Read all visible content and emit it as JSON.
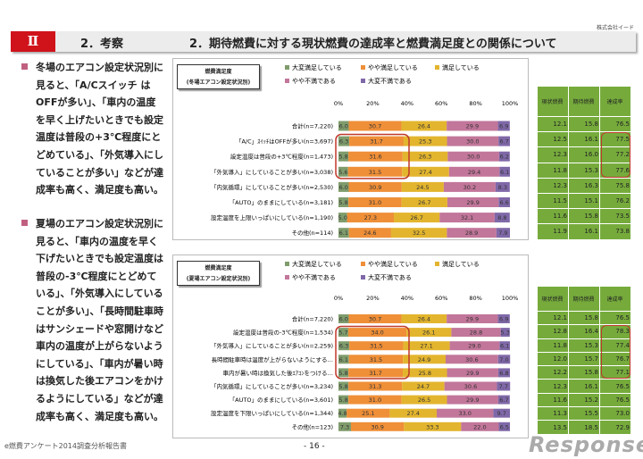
{
  "company": "株式会社イード",
  "header": {
    "section": "Ⅱ",
    "subtitle": "2．考察",
    "title": "2．期待燃費に対する現状燃費の達成率と燃費満足度との関係について"
  },
  "paragraphs": [
    "冬場のエアコン設定状況別に見ると、「A/Cスイッチ はOFFが多い」、「車内の温度を早く上げたいときでも設定温度は普段の+3℃程度にとどめている」、「外気導入にしていることが多い」などが達成率も高く、満足度も高い。",
    "夏場のエアコン設定状況別に見ると、「車内の温度を早く下げたいときでも設定温度は普段の-3℃程度にとどめている」、「外気導入にしていることが多い」、「長時間駐車時はサンシェードや窓開けなど車内の温度が上がらないようにしている」、「車内が暑い時は換気した後エアコンをかけるようにしている」などが達成率も高く、満足度も高い。"
  ],
  "footer": {
    "report": "e燃費アンケート2014調査分析報告書",
    "page": "- 16 -",
    "logo": "Response."
  },
  "colors": {
    "大変満足している": "#7f9c6c",
    "やや満足している": "#ef8f38",
    "満足している": "#e3b52e",
    "やや不満である": "#c2769a",
    "大変不満である": "#7f68a8",
    "table": "#76ab3c",
    "highlight": "#c0392b"
  },
  "chart_data": [
    {
      "type": "bar",
      "stacked": true,
      "orientation": "horizontal",
      "title_line1": "燃費満足度",
      "title_line2": "(冬場エアコン設定状況別)",
      "legend": [
        "大変満足している",
        "やや満足している",
        "満足している",
        "やや不満である",
        "大変不満である"
      ],
      "xticks": [
        "0%",
        "20%",
        "40%",
        "60%",
        "80%",
        "100%"
      ],
      "xlim": [
        0,
        100
      ],
      "categories": [
        "合計(n=7,220)",
        "「A/C」ｽｲｯﾁはOFFが多い(n=3,697)",
        "設定温度は普段の+3℃程度(n=1,473)",
        "「外気導入」にしていることが多い(n=3,038)",
        "「内気循環」にしていることが多い(n=2,530)",
        "「AUTO」のままにしている(n=3,181)",
        "設定温度を上限いっぱいにしている(n=1,190)",
        "その他(n=114)"
      ],
      "values": [
        [
          6.0,
          30.7,
          26.4,
          29.9,
          6.9
        ],
        [
          6.3,
          31.7,
          25.3,
          30.0,
          6.7
        ],
        [
          5.8,
          31.6,
          26.3,
          30.0,
          6.2
        ],
        [
          5.6,
          31.5,
          27.4,
          29.4,
          6.1
        ],
        [
          6.0,
          30.9,
          24.5,
          30.2,
          8.3
        ],
        [
          5.8,
          31.0,
          26.7,
          29.9,
          6.6
        ],
        [
          5.0,
          27.3,
          26.7,
          32.1,
          8.8
        ],
        [
          6.1,
          24.6,
          32.5,
          28.9,
          7.9
        ]
      ],
      "highlight_rows": [
        1,
        2,
        3
      ],
      "table": {
        "headers": [
          "現状燃費",
          "期待燃費",
          "達成率"
        ],
        "rows": [
          [
            12.1,
            15.8,
            76.5
          ],
          [
            12.5,
            16.1,
            77.5
          ],
          [
            12.3,
            16.0,
            77.2
          ],
          [
            11.8,
            15.3,
            77.6
          ],
          [
            12.3,
            16.3,
            75.8
          ],
          [
            11.5,
            15.1,
            76.2
          ],
          [
            11.6,
            15.8,
            73.5
          ],
          [
            11.9,
            16.1,
            73.8
          ]
        ]
      }
    },
    {
      "type": "bar",
      "stacked": true,
      "orientation": "horizontal",
      "title_line1": "燃費満足度",
      "title_line2": "(夏場エアコン設定状況別)",
      "legend": [
        "大変満足している",
        "やや満足している",
        "満足している",
        "やや不満である",
        "大変不満である"
      ],
      "xticks": [
        "0%",
        "20%",
        "40%",
        "60%",
        "80%",
        "100%"
      ],
      "xlim": [
        0,
        100
      ],
      "categories": [
        "合計(n=7,220)",
        "設定温度は普段の-3℃程度(n=1,534)",
        "「外気導入」にしていることが多い(n=2,259)",
        "長時間駐車時は温度が上がらないようにする…",
        "車内が暑い時は換気した後ｴｱｺﾝをつける…",
        "「内気循環」にしていることが多い(n=3,234)",
        "「AUTO」のままにしている(n=3,601)",
        "設定温度を下限いっぱいにしている(n=1,344)",
        "その他(n=123)"
      ],
      "values": [
        [
          6.0,
          30.7,
          26.4,
          29.9,
          6.9
        ],
        [
          5.7,
          34.0,
          26.1,
          28.8,
          5.3
        ],
        [
          6.3,
          31.5,
          27.1,
          29.0,
          6.1
        ],
        [
          6.1,
          31.5,
          24.9,
          30.6,
          7.0
        ],
        [
          5.8,
          31.7,
          25.8,
          29.9,
          6.8
        ],
        [
          5.8,
          31.3,
          24.7,
          30.6,
          7.7
        ],
        [
          5.8,
          31.0,
          26.5,
          29.9,
          6.7
        ],
        [
          4.8,
          25.1,
          27.4,
          33.0,
          9.7
        ],
        [
          7.3,
          30.9,
          33.3,
          22.0,
          6.5
        ]
      ],
      "highlight_rows": [
        1,
        2,
        3,
        4
      ],
      "table": {
        "headers": [
          "現状燃費",
          "期待燃費",
          "達成率"
        ],
        "rows": [
          [
            12.1,
            15.8,
            76.5
          ],
          [
            12.8,
            16.4,
            78.3
          ],
          [
            11.8,
            15.3,
            77.4
          ],
          [
            12.0,
            15.7,
            76.7
          ],
          [
            12.2,
            15.8,
            77.1
          ],
          [
            12.3,
            16.1,
            76.5
          ],
          [
            11.6,
            15.2,
            76.5
          ],
          [
            11.3,
            15.5,
            73.0
          ],
          [
            13.5,
            18.5,
            72.9
          ]
        ]
      }
    }
  ]
}
